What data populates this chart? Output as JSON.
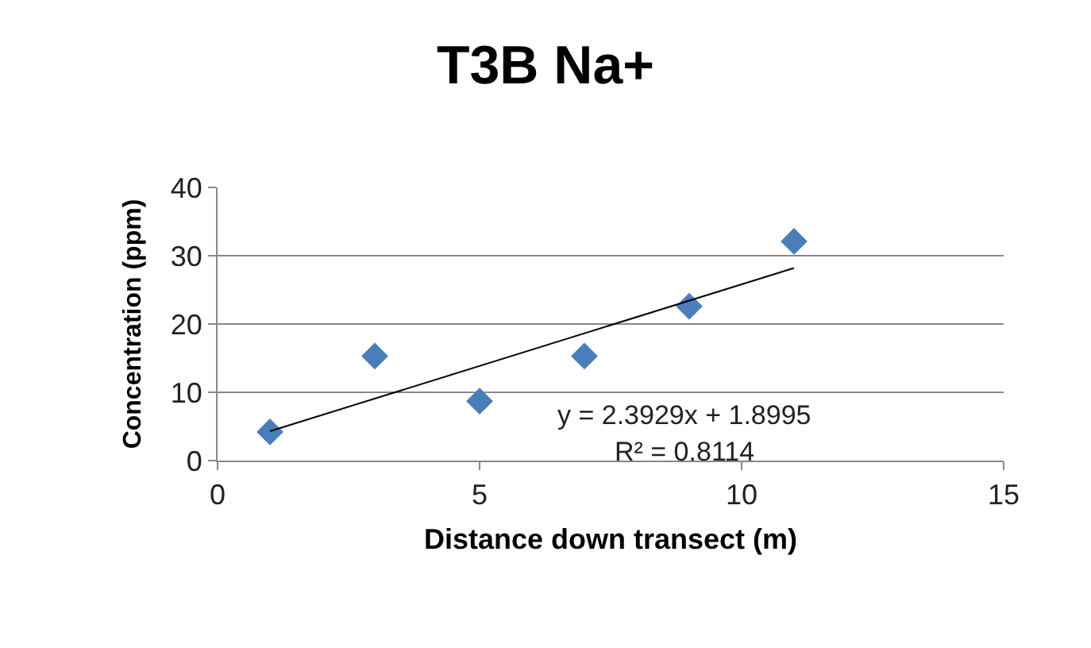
{
  "chart_data": {
    "type": "scatter",
    "title": "T3B Na+",
    "xlabel": "Distance down transect (m)",
    "ylabel": "Concentration (ppm)",
    "x": [
      1,
      3,
      5,
      7,
      9,
      11
    ],
    "series": [
      {
        "color": "#4a7ebb",
        "marker": "diamond",
        "values": [
          4.2,
          15.3,
          8.7,
          15.3,
          22.6,
          32.1
        ]
      },
      {
        "type": "line",
        "color": "#000000",
        "marker": "none",
        "x": [
          1,
          11
        ],
        "values": [
          4.3,
          28.2
        ]
      }
    ],
    "grid": "y",
    "legend": false,
    "xlim": [
      0,
      15
    ],
    "xticks": [
      0,
      5,
      10,
      15
    ],
    "ylim": [
      0,
      40
    ],
    "yticks": [
      0,
      10,
      20,
      30,
      40
    ],
    "annotations": [
      "y = 2.3929x + 1.8995",
      "R² = 0.8114"
    ]
  }
}
